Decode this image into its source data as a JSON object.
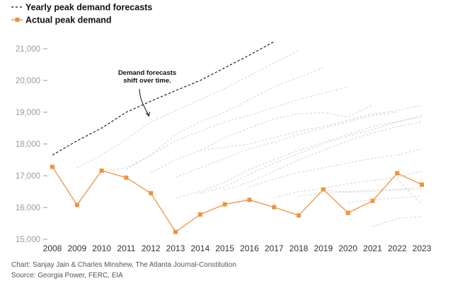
{
  "colors": {
    "actual": "#f0923e",
    "forecast_main": "#111111",
    "forecast_old": "#cfcfcf",
    "axis": "#9a9a9a",
    "footer": "#555555"
  },
  "chart_data": {
    "type": "line",
    "legend": {
      "placement": "top-left",
      "entries": [
        {
          "label": "Yearly peak demand forecasts",
          "style": "dashed",
          "color": "#111111"
        },
        {
          "label": "Actual peak demand",
          "style": "solid-square-markers",
          "color": "#f0923e"
        }
      ]
    },
    "x": [
      2008,
      2009,
      2010,
      2011,
      2012,
      2013,
      2014,
      2015,
      2016,
      2017,
      2018,
      2019,
      2020,
      2021,
      2022,
      2023
    ],
    "x_tick_labels": [
      "2008",
      "2009",
      "2010",
      "2011",
      "2012",
      "2013",
      "2014",
      "2015",
      "2016",
      "2017",
      "2018",
      "2019",
      "2020",
      "2021",
      "2022",
      "2023"
    ],
    "y_ticks": [
      15000,
      16000,
      17000,
      18000,
      19000,
      20000,
      21000
    ],
    "y_tick_labels": [
      "15,000",
      "16,000",
      "17,000",
      "18,000",
      "19,000",
      "20,000",
      "21,000"
    ],
    "ylim": [
      15000,
      21300
    ],
    "xlim": [
      2008,
      2023
    ],
    "grid": false,
    "series": [
      {
        "name": "Actual peak demand",
        "style": "actual",
        "points": [
          [
            2008,
            17280
          ],
          [
            2009,
            16080
          ],
          [
            2010,
            17160
          ],
          [
            2011,
            16940
          ],
          [
            2012,
            16450
          ],
          [
            2013,
            15230
          ],
          [
            2014,
            15780
          ],
          [
            2015,
            16100
          ],
          [
            2016,
            16240
          ],
          [
            2017,
            16010
          ],
          [
            2018,
            15750
          ],
          [
            2019,
            16570
          ],
          [
            2020,
            15830
          ],
          [
            2021,
            16210
          ],
          [
            2022,
            17080
          ],
          [
            2023,
            16720
          ]
        ]
      },
      {
        "style": "forecast_main",
        "points": [
          [
            2008,
            17650
          ],
          [
            2009,
            18100
          ],
          [
            2010,
            18500
          ],
          [
            2011,
            19000
          ],
          [
            2012,
            19350
          ],
          [
            2013,
            19680
          ],
          [
            2014,
            20000
          ],
          [
            2015,
            20400
          ],
          [
            2016,
            20800
          ],
          [
            2017,
            21220
          ]
        ]
      },
      {
        "style": "forecast_old",
        "points": [
          [
            2009,
            17250
          ],
          [
            2010,
            17650
          ],
          [
            2011,
            18150
          ],
          [
            2012,
            18700
          ],
          [
            2013,
            19050
          ],
          [
            2014,
            19400
          ],
          [
            2015,
            19750
          ],
          [
            2016,
            20150
          ],
          [
            2017,
            20550
          ],
          [
            2018,
            20950
          ]
        ]
      },
      {
        "style": "forecast_old",
        "points": [
          [
            2010,
            17150
          ],
          [
            2011,
            17250
          ],
          [
            2012,
            17650
          ],
          [
            2013,
            18300
          ],
          [
            2014,
            18700
          ],
          [
            2015,
            19000
          ],
          [
            2016,
            19400
          ],
          [
            2017,
            19800
          ],
          [
            2018,
            20100
          ],
          [
            2019,
            20400
          ]
        ]
      },
      {
        "style": "forecast_old",
        "points": [
          [
            2011,
            17200
          ],
          [
            2012,
            17650
          ],
          [
            2013,
            18100
          ],
          [
            2014,
            18400
          ],
          [
            2015,
            18700
          ],
          [
            2016,
            18900
          ],
          [
            2017,
            19150
          ],
          [
            2018,
            19400
          ],
          [
            2019,
            19600
          ],
          [
            2020,
            19800
          ]
        ]
      },
      {
        "style": "forecast_old",
        "points": [
          [
            2012,
            17100
          ],
          [
            2013,
            17500
          ],
          [
            2014,
            17800
          ],
          [
            2015,
            18200
          ],
          [
            2016,
            18500
          ],
          [
            2017,
            18800
          ],
          [
            2018,
            18950
          ],
          [
            2019,
            18990
          ],
          [
            2020,
            18850
          ],
          [
            2021,
            19230
          ]
        ]
      },
      {
        "style": "forecast_old",
        "points": [
          [
            2013,
            16950
          ],
          [
            2014,
            17250
          ],
          [
            2015,
            17550
          ],
          [
            2016,
            17850
          ],
          [
            2017,
            18050
          ],
          [
            2018,
            18300
          ],
          [
            2019,
            18500
          ],
          [
            2020,
            18700
          ],
          [
            2021,
            18900
          ],
          [
            2022,
            19000
          ]
        ]
      },
      {
        "style": "forecast_old",
        "points": [
          [
            2014,
            17800
          ],
          [
            2015,
            17900
          ],
          [
            2016,
            18000
          ],
          [
            2017,
            18200
          ],
          [
            2018,
            18400
          ],
          [
            2019,
            18550
          ],
          [
            2020,
            18750
          ],
          [
            2021,
            18950
          ],
          [
            2022,
            19050
          ],
          [
            2023,
            19220
          ]
        ]
      },
      {
        "style": "forecast_old",
        "points": [
          [
            2013,
            16300
          ],
          [
            2014,
            16500
          ],
          [
            2015,
            16800
          ],
          [
            2016,
            17200
          ],
          [
            2017,
            17500
          ],
          [
            2018,
            17800
          ],
          [
            2019,
            18050
          ],
          [
            2020,
            18300
          ],
          [
            2021,
            18550
          ],
          [
            2022,
            18700
          ],
          [
            2023,
            18850
          ]
        ]
      },
      {
        "style": "forecast_old",
        "points": [
          [
            2014,
            16450
          ],
          [
            2015,
            16650
          ],
          [
            2016,
            17050
          ],
          [
            2017,
            17400
          ],
          [
            2018,
            17700
          ],
          [
            2019,
            18000
          ],
          [
            2020,
            18250
          ],
          [
            2021,
            18450
          ],
          [
            2022,
            18700
          ],
          [
            2023,
            18900
          ]
        ]
      },
      {
        "style": "forecast_old",
        "points": [
          [
            2015,
            16550
          ],
          [
            2016,
            16800
          ],
          [
            2017,
            17150
          ],
          [
            2018,
            17500
          ],
          [
            2019,
            17800
          ],
          [
            2020,
            18100
          ],
          [
            2021,
            18350
          ],
          [
            2022,
            18550
          ],
          [
            2023,
            18700
          ]
        ]
      },
      {
        "style": "forecast_old",
        "points": [
          [
            2016,
            16650
          ],
          [
            2017,
            16900
          ],
          [
            2018,
            17100
          ],
          [
            2019,
            17250
          ],
          [
            2020,
            17400
          ],
          [
            2021,
            17550
          ],
          [
            2022,
            17650
          ],
          [
            2023,
            17850
          ]
        ]
      },
      {
        "style": "forecast_old",
        "points": [
          [
            2017,
            16300
          ],
          [
            2018,
            16500
          ],
          [
            2019,
            16600
          ],
          [
            2020,
            16750
          ],
          [
            2021,
            16850
          ],
          [
            2022,
            16950
          ],
          [
            2023,
            17150
          ]
        ]
      },
      {
        "style": "forecast_old",
        "points": [
          [
            2018,
            16350
          ],
          [
            2019,
            16450
          ],
          [
            2020,
            16500
          ],
          [
            2021,
            16550
          ],
          [
            2022,
            16560
          ],
          [
            2023,
            16580
          ]
        ]
      },
      {
        "style": "forecast_old",
        "points": [
          [
            2019,
            16550
          ],
          [
            2020,
            16480
          ],
          [
            2021,
            16500
          ],
          [
            2022,
            16560
          ],
          [
            2023,
            16650
          ]
        ]
      },
      {
        "style": "forecast_old",
        "points": [
          [
            2020,
            16150
          ],
          [
            2021,
            16250
          ],
          [
            2022,
            16300
          ],
          [
            2023,
            16350
          ]
        ]
      },
      {
        "style": "forecast_old",
        "points": [
          [
            2021,
            15400
          ],
          [
            2022,
            15650
          ],
          [
            2023,
            15720
          ]
        ]
      },
      {
        "style": "forecast_old",
        "points": [
          [
            2022,
            16900
          ],
          [
            2023,
            16100
          ]
        ]
      }
    ],
    "annotation": {
      "lines": [
        "Demand forecasts",
        "shift over time."
      ],
      "target": [
        2012,
        18700
      ]
    }
  },
  "footer": {
    "credit": "Chart: Sanjay Jain & Charles Minshew, The Atlanta Journal-Constitution",
    "source": "Source: Georgia Power, FERC, EIA"
  }
}
